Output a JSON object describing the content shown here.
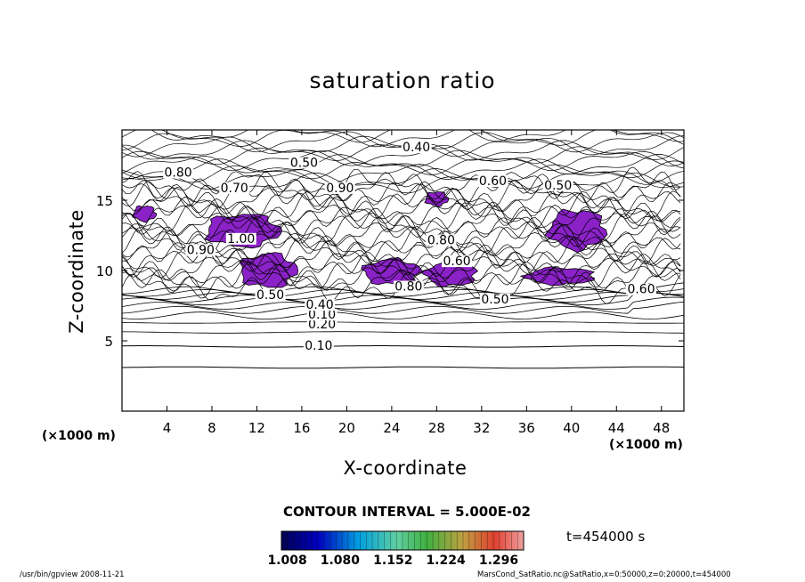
{
  "chart_data": {
    "type": "contour",
    "title": "saturation ratio",
    "xlabel": "X-coordinate",
    "ylabel": "Z-coordinate",
    "x_unit": "(×1000 m)",
    "y_unit": "(×1000 m)",
    "xlim": [
      0,
      50
    ],
    "ylim": [
      0,
      20
    ],
    "x_ticks": [
      4,
      8,
      12,
      16,
      20,
      24,
      28,
      32,
      36,
      40,
      44,
      48
    ],
    "y_ticks": [
      5,
      10,
      15
    ],
    "contour_interval_text": "CONTOUR INTERVAL = 5.000E-02",
    "time_text": "t=454000 s",
    "contour_labels": [
      {
        "text": "0.10",
        "x": 17.5,
        "z": 4.5
      },
      {
        "text": "0.20",
        "x": 17.8,
        "z": 6.0
      },
      {
        "text": "0.10",
        "x": 17.8,
        "z": 6.7
      },
      {
        "text": "0.40",
        "x": 17.6,
        "z": 7.4
      },
      {
        "text": "0.50",
        "x": 13.2,
        "z": 8.1
      },
      {
        "text": "0.50",
        "x": 33.2,
        "z": 7.8
      },
      {
        "text": "0.80",
        "x": 25.5,
        "z": 8.7
      },
      {
        "text": "0.60",
        "x": 46.2,
        "z": 8.5
      },
      {
        "text": "1.00",
        "x": 10.6,
        "z": 12.1
      },
      {
        "text": "0.90",
        "x": 7.0,
        "z": 11.3
      },
      {
        "text": "0.80",
        "x": 28.4,
        "z": 12.0
      },
      {
        "text": "0.60",
        "x": 29.8,
        "z": 10.5
      },
      {
        "text": "0.70",
        "x": 10.0,
        "z": 15.7
      },
      {
        "text": "0.90",
        "x": 19.4,
        "z": 15.7
      },
      {
        "text": "0.80",
        "x": 5.0,
        "z": 16.8
      },
      {
        "text": "0.50",
        "x": 16.2,
        "z": 17.5
      },
      {
        "text": "0.40",
        "x": 26.2,
        "z": 18.6
      },
      {
        "text": "0.60",
        "x": 33.0,
        "z": 16.2
      },
      {
        "text": "0.50",
        "x": 38.8,
        "z": 15.9
      }
    ],
    "colorbar": {
      "ticks": [
        "1.008",
        "1.080",
        "1.152",
        "1.224",
        "1.296"
      ],
      "range": [
        1.0,
        1.33
      ]
    },
    "supersaturated_regions": [
      {
        "x": [
          1.0,
          3.0
        ],
        "z": [
          13.5,
          14.6
        ]
      },
      {
        "x": [
          7.5,
          14.0
        ],
        "z": [
          11.7,
          14.0
        ]
      },
      {
        "x": [
          10.5,
          15.5
        ],
        "z": [
          8.8,
          11.2
        ]
      },
      {
        "x": [
          21.5,
          26.5
        ],
        "z": [
          9.0,
          10.8
        ]
      },
      {
        "x": [
          27.0,
          31.5
        ],
        "z": [
          8.9,
          10.6
        ]
      },
      {
        "x": [
          36.0,
          42.0
        ],
        "z": [
          9.0,
          10.2
        ]
      },
      {
        "x": [
          38.0,
          43.0
        ],
        "z": [
          11.5,
          14.3
        ]
      },
      {
        "x": [
          27.0,
          29.0
        ],
        "z": [
          14.6,
          15.6
        ]
      }
    ]
  },
  "footer": {
    "left": "/usr/bin/gpview   2008-11-21",
    "right": "MarsCond_SatRatio.nc@SatRatio,x=0:50000,z=0:20000,t=454000"
  },
  "colors": {
    "supersat": "#8b22c8",
    "supersat_core": "#3a34d8",
    "line": "#000000"
  }
}
